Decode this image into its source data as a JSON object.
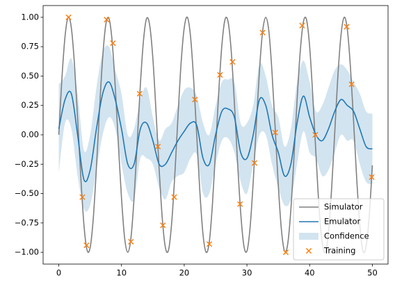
{
  "chart_data": {
    "type": "line",
    "xlim": [
      -2.5,
      52.5
    ],
    "ylim": [
      -1.1,
      1.1
    ],
    "xticks": [
      0,
      10,
      20,
      30,
      40,
      50
    ],
    "yticks": [
      {
        "value": -1,
        "label": "−1.00"
      },
      {
        "value": -0.75,
        "label": "−0.75"
      },
      {
        "value": -0.5,
        "label": "−0.50"
      },
      {
        "value": -0.25,
        "label": "−0.25"
      },
      {
        "value": 0,
        "label": "0.00"
      },
      {
        "value": 0.25,
        "label": "0.25"
      },
      {
        "value": 0.5,
        "label": "0.50"
      },
      {
        "value": 0.75,
        "label": "0.75"
      },
      {
        "value": 1,
        "label": "1.00"
      }
    ],
    "legend": "lower right",
    "series": [
      {
        "name": "Simulator",
        "type": "line",
        "color": "#808080",
        "x": [
          0,
          0.5,
          1,
          1.5,
          2,
          2.5,
          3,
          3.5,
          4,
          4.5,
          5,
          5.5,
          6,
          6.5,
          7,
          7.5,
          8,
          8.5,
          9,
          9.5,
          10,
          10.5,
          11,
          11.5,
          12,
          12.5,
          13,
          13.5,
          14,
          14.5,
          15,
          15.5,
          16,
          16.5,
          17,
          17.5,
          18,
          18.5,
          19,
          19.5,
          20,
          20.5,
          21,
          21.5,
          22,
          22.5,
          23,
          23.5,
          24,
          24.5,
          25,
          25.5,
          26,
          26.5,
          27,
          27.5,
          28,
          28.5,
          29,
          29.5,
          30,
          30.5,
          31,
          31.5,
          32,
          32.5,
          33,
          33.5,
          34,
          34.5,
          35,
          35.5,
          36,
          36.5,
          37,
          37.5,
          38,
          38.5,
          39,
          39.5,
          40,
          40.5,
          41,
          41.5,
          42,
          42.5,
          43,
          43.5,
          44,
          44.5,
          45,
          45.5,
          46,
          46.5,
          47,
          47.5,
          48,
          48.5,
          49,
          49.5,
          50
        ],
        "values": [
          0,
          0.48,
          0.84,
          1.0,
          0.91,
          0.6,
          0.14,
          -0.35,
          -0.76,
          -0.98,
          -0.96,
          -0.71,
          -0.28,
          0.22,
          0.66,
          0.94,
          0.99,
          0.8,
          0.41,
          -0.08,
          -0.54,
          -0.88,
          -1.0,
          -0.88,
          -0.54,
          -0.07,
          0.42,
          0.8,
          0.99,
          0.93,
          0.65,
          0.2,
          -0.29,
          -0.71,
          -0.96,
          -0.98,
          -0.75,
          -0.34,
          0.15,
          0.61,
          0.91,
          1.0,
          0.84,
          0.47,
          -0.01,
          -0.49,
          -0.85,
          -1.0,
          -0.91,
          -0.59,
          -0.13,
          0.36,
          0.76,
          0.98,
          0.96,
          0.71,
          0.27,
          -0.23,
          -0.66,
          -0.94,
          -0.99,
          -0.79,
          -0.4,
          0.09,
          0.55,
          0.88,
          1.0,
          0.88,
          0.53,
          0.06,
          -0.43,
          -0.81,
          -0.99,
          -0.93,
          -0.64,
          -0.19,
          0.3,
          0.71,
          0.96,
          0.98,
          0.75,
          0.33,
          -0.16,
          -0.62,
          -0.92,
          -1.0,
          -0.83,
          -0.46,
          0.02,
          0.5,
          0.85,
          1.0,
          0.9,
          0.58,
          0.12,
          -0.37,
          -0.77,
          -0.99,
          -0.95,
          -0.69,
          -0.26
        ]
      },
      {
        "name": "Emulator",
        "type": "line",
        "color": "#1f77b4",
        "x": [
          0,
          1,
          2,
          3,
          4,
          5,
          6,
          7,
          8,
          9,
          10,
          11,
          12,
          13,
          14,
          15,
          16,
          17,
          18,
          19,
          20,
          21,
          22,
          23,
          24,
          25,
          26,
          27,
          28,
          29,
          30,
          31,
          32,
          33,
          34,
          35,
          36,
          37,
          38,
          39,
          40,
          41,
          42,
          43,
          44,
          45,
          46,
          47,
          48,
          49,
          50
        ],
        "values": [
          0.05,
          0.3,
          0.35,
          0,
          -0.38,
          -0.3,
          0.05,
          0.35,
          0.45,
          0.3,
          0.05,
          -0.25,
          -0.25,
          0.05,
          0.1,
          -0.05,
          -0.25,
          -0.25,
          -0.15,
          -0.05,
          0.03,
          0.1,
          0.08,
          -0.2,
          -0.25,
          0,
          0.2,
          0.22,
          0.15,
          -0.15,
          -0.2,
          0,
          0.3,
          0.25,
          0,
          -0.15,
          -0.35,
          -0.25,
          0.1,
          0.33,
          0.15,
          0,
          -0.05,
          0.05,
          0.2,
          0.3,
          0.25,
          0.2,
          0.05,
          -0.1,
          -0.12
        ]
      },
      {
        "name": "Confidence",
        "type": "band",
        "color": "#1f77b4",
        "x": [
          0,
          1,
          2,
          3,
          4,
          5,
          6,
          7,
          8,
          9,
          10,
          11,
          12,
          13,
          14,
          15,
          16,
          17,
          18,
          19,
          20,
          21,
          22,
          23,
          24,
          25,
          26,
          27,
          28,
          29,
          30,
          31,
          32,
          33,
          34,
          35,
          36,
          37,
          38,
          39,
          40,
          41,
          42,
          43,
          44,
          45,
          46,
          47,
          48,
          49,
          50
        ],
        "upper": [
          0.43,
          0.5,
          0.65,
          0.35,
          -0.13,
          0,
          0.4,
          0.7,
          0.75,
          0.55,
          0.35,
          0,
          0.05,
          0.3,
          0.4,
          0.15,
          -0.05,
          0.05,
          0.1,
          0.25,
          0.38,
          0.4,
          0.33,
          0.1,
          0,
          0.25,
          0.45,
          0.47,
          0.45,
          0.1,
          0.1,
          0.25,
          0.6,
          0.5,
          0.25,
          0.15,
          -0.1,
          0.05,
          0.45,
          0.63,
          0.45,
          0.2,
          0.25,
          0.4,
          0.55,
          0.6,
          0.55,
          0.45,
          0.35,
          0.2,
          0.18
        ],
        "lower": [
          -0.33,
          0.1,
          0.05,
          -0.35,
          -0.63,
          -0.6,
          -0.3,
          0,
          0.15,
          0.05,
          -0.25,
          -0.5,
          -0.55,
          -0.2,
          -0.2,
          -0.25,
          -0.45,
          -0.55,
          -0.4,
          -0.35,
          -0.32,
          -0.2,
          -0.17,
          -0.5,
          -0.5,
          -0.25,
          -0.05,
          -0.03,
          -0.15,
          -0.4,
          -0.5,
          -0.25,
          0,
          0,
          -0.25,
          -0.45,
          -0.6,
          -0.55,
          -0.25,
          0.03,
          -0.15,
          -0.2,
          -0.35,
          -0.3,
          -0.15,
          0,
          -0.05,
          -0.05,
          -0.25,
          -0.4,
          -0.42
        ]
      },
      {
        "name": "Training",
        "type": "scatter",
        "color": "#ff7f0e",
        "x": [
          1.55,
          7.63,
          8.63,
          3.76,
          4.42,
          11.5,
          12.9,
          15.8,
          16.6,
          18.4,
          21.7,
          24.0,
          25.7,
          27.7,
          28.9,
          31.2,
          32.5,
          34.5,
          36.2,
          38.8,
          40.9,
          45.9,
          46.7,
          49.9
        ],
        "values": [
          1.0,
          0.98,
          0.78,
          -0.53,
          -0.94,
          -0.91,
          0.35,
          -0.1,
          -0.77,
          -0.53,
          0.3,
          -0.93,
          0.51,
          0.62,
          -0.59,
          -0.24,
          0.87,
          0.02,
          -1.0,
          0.93,
          0.0,
          0.92,
          0.43,
          -0.36
        ]
      }
    ]
  }
}
